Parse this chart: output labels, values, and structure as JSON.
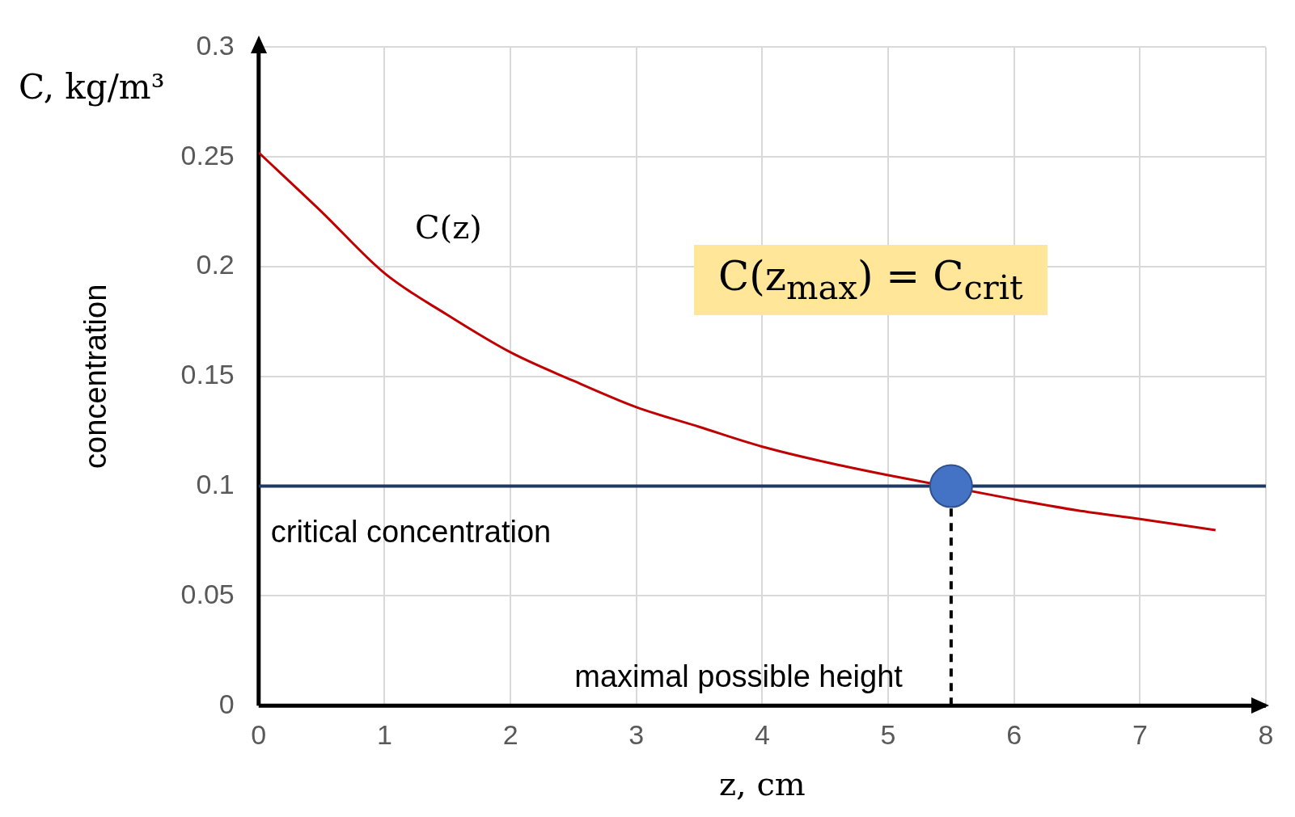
{
  "chart_data": {
    "type": "line",
    "xlabel": "z, cm",
    "ylabel": "concentration",
    "xlim": [
      0,
      8
    ],
    "xticks": [
      0,
      1,
      2,
      3,
      4,
      5,
      6,
      7,
      8
    ],
    "ylim": [
      0,
      0.3
    ],
    "yticks": [
      0,
      0.05,
      0.1,
      0.15,
      0.2,
      0.25,
      0.3
    ],
    "grid": true,
    "legend": false,
    "series": [
      {
        "color": "#c00000",
        "marker": "none",
        "x": [
          0,
          0.5,
          1,
          1.5,
          2,
          2.5,
          3,
          3.5,
          4,
          4.5,
          5,
          6,
          6.5,
          7,
          7.6
        ],
        "values": [
          0.252,
          0.225,
          0.197,
          0.178,
          0.161,
          0.148,
          0.136,
          0.127,
          0.118,
          0.111,
          0.105,
          0.094,
          0.089,
          0.085,
          0.08
        ]
      },
      {
        "type": "scatter",
        "color": "#4472c4",
        "marker": "circle",
        "x": [
          5.5
        ],
        "values": [
          0.1
        ]
      }
    ],
    "ref_lines": [
      {
        "axis": "y",
        "value": 0.1,
        "label": "critical concentration",
        "color": "#1f3864",
        "line_style": "solid"
      },
      {
        "axis": "x",
        "value": 5.5,
        "label": "maximal possible height",
        "color": "#000000",
        "line_style": "dashed"
      }
    ],
    "annotations": [
      "C, kg/m³",
      "C(z$_{max}$) = C$_{crit}$",
      "C(z)"
    ]
  }
}
